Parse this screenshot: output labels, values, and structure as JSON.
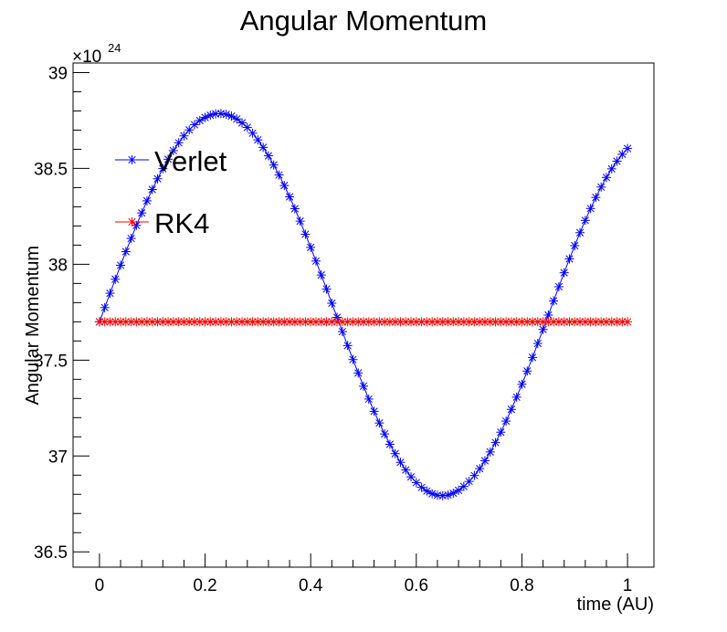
{
  "chart_data": {
    "type": "scatter",
    "title": "Angular Momentum",
    "xlabel": "time (AU)",
    "ylabel": "Angular Momentum",
    "y_multiplier": {
      "base": "×10",
      "exponent": "24"
    },
    "xlim": [
      -0.05,
      1.05
    ],
    "ylim": [
      36.42,
      39.05
    ],
    "x_ticks": [
      0,
      0.2,
      0.4,
      0.6,
      0.8,
      1
    ],
    "x_tick_labels": [
      "0",
      "0.2",
      "0.4",
      "0.6",
      "0.8",
      "1"
    ],
    "y_ticks": [
      36.5,
      37,
      37.5,
      38,
      38.5,
      39
    ],
    "y_tick_labels": [
      "36.5",
      "37",
      "37.5",
      "38",
      "38.5",
      "39"
    ],
    "grid": false,
    "legend_position": "top-left",
    "marker": "asterisk",
    "series": [
      {
        "name": "Verlet",
        "color": "#0000ff",
        "x": [
          0,
          0.01,
          0.02,
          0.03,
          0.04,
          0.05,
          0.06,
          0.07,
          0.08,
          0.09,
          0.1,
          0.11,
          0.12,
          0.13,
          0.14,
          0.15,
          0.16,
          0.17,
          0.18,
          0.19,
          0.2,
          0.21,
          0.22,
          0.23,
          0.24,
          0.25,
          0.26,
          0.27,
          0.28,
          0.29,
          0.3,
          0.31,
          0.32,
          0.33,
          0.34,
          0.35,
          0.36,
          0.37,
          0.38,
          0.39,
          0.4,
          0.41,
          0.42,
          0.43,
          0.44,
          0.45,
          0.46,
          0.47,
          0.48,
          0.49,
          0.5,
          0.51,
          0.52,
          0.53,
          0.54,
          0.55,
          0.56,
          0.57,
          0.58,
          0.59,
          0.6,
          0.61,
          0.62,
          0.63,
          0.64,
          0.65,
          0.66,
          0.67,
          0.68,
          0.69,
          0.7,
          0.71,
          0.72,
          0.73,
          0.74,
          0.75,
          0.76,
          0.77,
          0.78,
          0.79,
          0.8,
          0.81,
          0.82,
          0.83,
          0.84,
          0.85,
          0.86,
          0.87,
          0.88,
          0.89,
          0.9,
          0.91,
          0.92,
          0.93,
          0.94,
          0.95,
          0.96,
          0.97,
          0.98,
          0.99,
          1
        ],
        "y": [
          37.7,
          37.774,
          37.849,
          37.922,
          37.995,
          38.066,
          38.135,
          38.203,
          38.268,
          38.331,
          38.39,
          38.446,
          38.499,
          38.548,
          38.593,
          38.634,
          38.67,
          38.701,
          38.728,
          38.75,
          38.766,
          38.778,
          38.785,
          38.786,
          38.782,
          38.773,
          38.758,
          38.738,
          38.714,
          38.684,
          38.649,
          38.61,
          38.566,
          38.518,
          38.466,
          38.411,
          38.352,
          38.29,
          38.225,
          38.157,
          38.088,
          38.017,
          37.944,
          37.871,
          37.797,
          37.723,
          37.649,
          37.576,
          37.503,
          37.433,
          37.364,
          37.297,
          37.233,
          37.172,
          37.115,
          37.061,
          37.012,
          36.967,
          36.927,
          36.891,
          36.861,
          36.836,
          36.817,
          36.803,
          36.795,
          36.793,
          36.796,
          36.806,
          36.821,
          36.841,
          36.867,
          36.898,
          36.934,
          36.975,
          37.021,
          37.07,
          37.124,
          37.182,
          37.243,
          37.307,
          37.374,
          37.443,
          37.514,
          37.587,
          37.66,
          37.735,
          37.809,
          37.883,
          37.956,
          38.028,
          38.097,
          38.165,
          38.229,
          38.291,
          38.349,
          38.403,
          38.453,
          38.498,
          38.538,
          38.574,
          38.604
        ]
      },
      {
        "name": "RK4",
        "color": "#ff0000",
        "x": [
          0,
          0.01,
          0.02,
          0.03,
          0.04,
          0.05,
          0.06,
          0.07,
          0.08,
          0.09,
          0.1,
          0.11,
          0.12,
          0.13,
          0.14,
          0.15,
          0.16,
          0.17,
          0.18,
          0.19,
          0.2,
          0.21,
          0.22,
          0.23,
          0.24,
          0.25,
          0.26,
          0.27,
          0.28,
          0.29,
          0.3,
          0.31,
          0.32,
          0.33,
          0.34,
          0.35,
          0.36,
          0.37,
          0.38,
          0.39,
          0.4,
          0.41,
          0.42,
          0.43,
          0.44,
          0.45,
          0.46,
          0.47,
          0.48,
          0.49,
          0.5,
          0.51,
          0.52,
          0.53,
          0.54,
          0.55,
          0.56,
          0.57,
          0.58,
          0.59,
          0.6,
          0.61,
          0.62,
          0.63,
          0.64,
          0.65,
          0.66,
          0.67,
          0.68,
          0.69,
          0.7,
          0.71,
          0.72,
          0.73,
          0.74,
          0.75,
          0.76,
          0.77,
          0.78,
          0.79,
          0.8,
          0.81,
          0.82,
          0.83,
          0.84,
          0.85,
          0.86,
          0.87,
          0.88,
          0.89,
          0.9,
          0.91,
          0.92,
          0.93,
          0.94,
          0.95,
          0.96,
          0.97,
          0.98,
          0.99,
          1
        ],
        "y": [
          37.7,
          37.7,
          37.7,
          37.7,
          37.7,
          37.7,
          37.7,
          37.7,
          37.7,
          37.7,
          37.7,
          37.7,
          37.7,
          37.7,
          37.7,
          37.7,
          37.7,
          37.7,
          37.7,
          37.7,
          37.7,
          37.7,
          37.7,
          37.7,
          37.7,
          37.7,
          37.7,
          37.7,
          37.7,
          37.7,
          37.7,
          37.7,
          37.7,
          37.7,
          37.7,
          37.7,
          37.7,
          37.7,
          37.7,
          37.7,
          37.7,
          37.7,
          37.7,
          37.7,
          37.7,
          37.7,
          37.7,
          37.7,
          37.7,
          37.7,
          37.7,
          37.7,
          37.7,
          37.7,
          37.7,
          37.7,
          37.7,
          37.7,
          37.7,
          37.7,
          37.7,
          37.7,
          37.7,
          37.7,
          37.7,
          37.7,
          37.7,
          37.7,
          37.7,
          37.7,
          37.7,
          37.7,
          37.7,
          37.7,
          37.7,
          37.7,
          37.7,
          37.7,
          37.7,
          37.7,
          37.7,
          37.7,
          37.7,
          37.7,
          37.7,
          37.7,
          37.7,
          37.7,
          37.7,
          37.7,
          37.7,
          37.7,
          37.7,
          37.7,
          37.7,
          37.7,
          37.7,
          37.7,
          37.7,
          37.7,
          37.7
        ]
      }
    ]
  }
}
